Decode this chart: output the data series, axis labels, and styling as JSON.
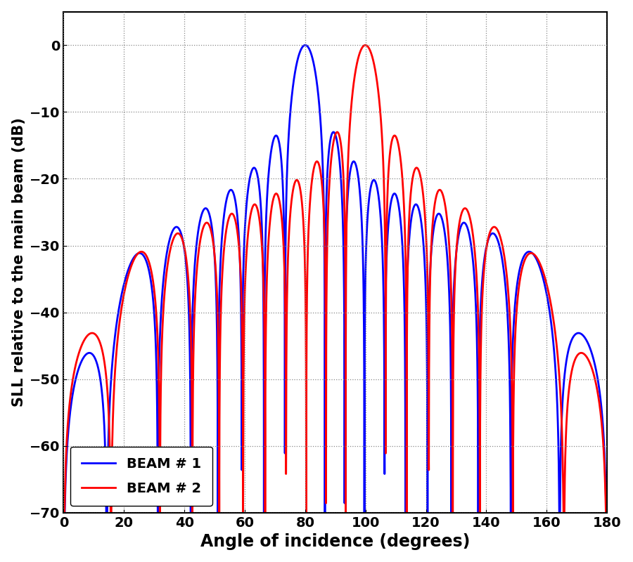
{
  "title": "",
  "xlabel": "Angle of incidence (degrees)",
  "ylabel": "SLL relative to the main beam (dB)",
  "xlim": [
    0,
    180
  ],
  "ylim": [
    -70,
    5
  ],
  "xticks": [
    0,
    20,
    40,
    60,
    80,
    100,
    120,
    140,
    160,
    180
  ],
  "yticks": [
    0,
    -10,
    -20,
    -30,
    -40,
    -50,
    -60,
    -70
  ],
  "beam1_color": "#0000FF",
  "beam2_color": "#FF0000",
  "beam1_label": "BEAM # 1",
  "beam2_label": "BEAM # 2",
  "beam1_steer_deg": 80,
  "beam2_steer_deg": 100,
  "N": 16,
  "d_lambda": 0.55,
  "background_color": "#FFFFFF",
  "grid_color": "#888888",
  "linewidth": 2.0,
  "legend_loc": "lower left",
  "legend_fontsize": 14,
  "axis_label_fontsize": 16,
  "tick_fontsize": 14,
  "xlabel_fontsize": 17,
  "ylabel_fontsize": 15
}
